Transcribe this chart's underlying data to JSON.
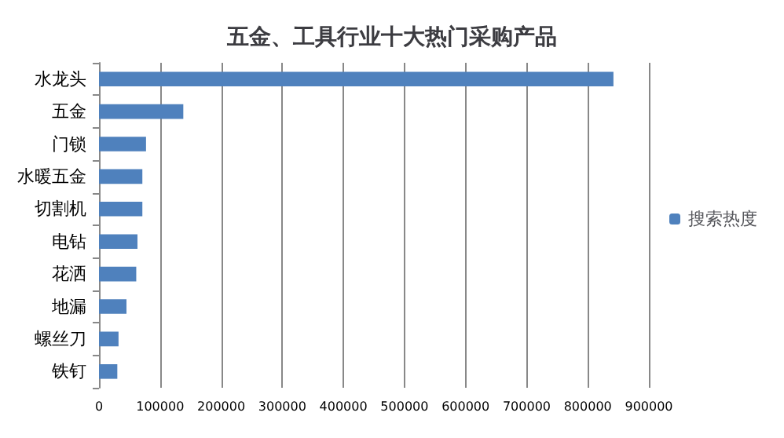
{
  "chart_data": {
    "type": "bar",
    "orientation": "horizontal",
    "title": "五金、工具行业十大热门采购产品",
    "categories": [
      "水龙头",
      "五金",
      "门锁",
      "水暖五金",
      "切割机",
      "电钻",
      "花洒",
      "地漏",
      "螺丝刀",
      "铁钉"
    ],
    "series": [
      {
        "name": "搜索热度",
        "color": "#4f81bd",
        "values": [
          842000,
          138000,
          77000,
          71000,
          71000,
          63000,
          61000,
          45000,
          32000,
          30000
        ]
      }
    ],
    "xlim": [
      0,
      900000
    ],
    "xticks": [
      0,
      100000,
      200000,
      300000,
      400000,
      500000,
      600000,
      700000,
      800000,
      900000
    ],
    "grid": "x",
    "legend": "right"
  }
}
